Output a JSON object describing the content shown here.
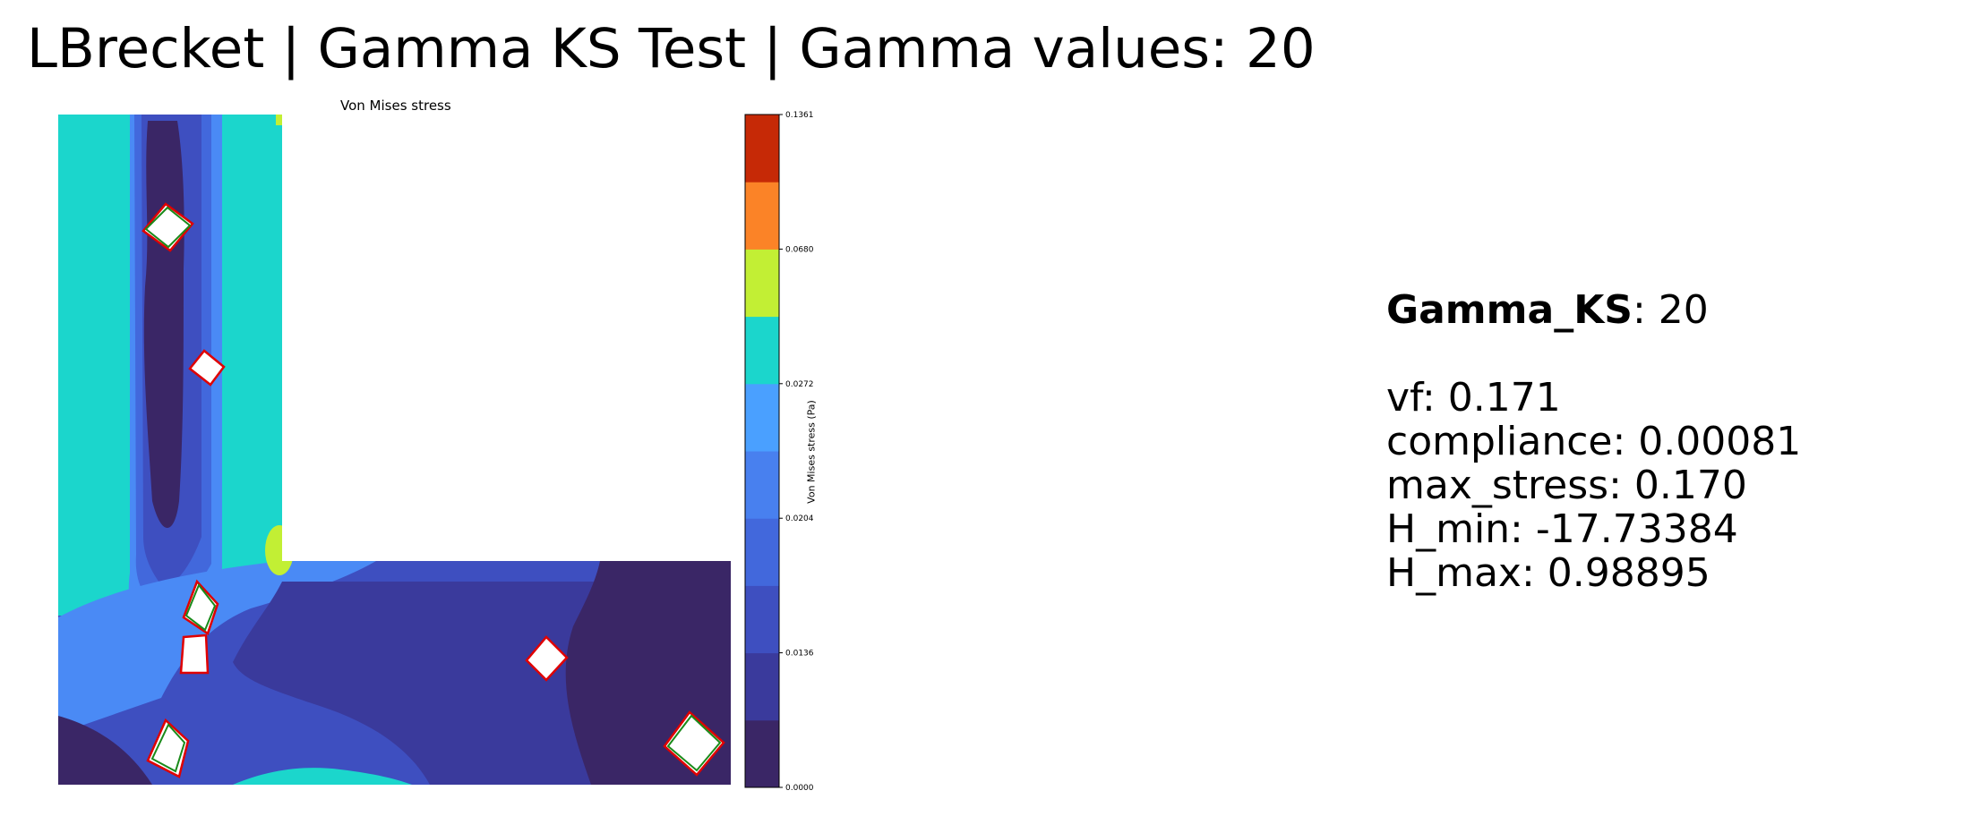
{
  "title": "LBrecket | Gamma KS Test | Gamma values: 20",
  "chart_data": {
    "type": "heatmap",
    "title": "Von Mises stress",
    "colorbar": {
      "label": "Von Mises stress (Pa)",
      "ticks": [
        "0.0000",
        "0.0136",
        "0.0204",
        "0.0272",
        "0.0680",
        "0.1361"
      ],
      "levels": [
        0.0,
        0.0136,
        0.017,
        0.0204,
        0.0238,
        0.0272,
        0.0476,
        0.068,
        0.102,
        0.1361,
        0.17
      ],
      "colors": [
        "#3a2666",
        "#3a3a9c",
        "#3e4fc0",
        "#4268dc",
        "#4880ef",
        "#4aa0ff",
        "#1bd6cc",
        "#c2ef34",
        "#fb8327",
        "#c62906"
      ]
    },
    "domain_shape": "L-bracket",
    "holes": 8
  },
  "info": {
    "gamma_key": "Gamma_KS",
    "gamma_value": ": 20",
    "lines": [
      "vf: 0.171",
      "compliance: 0.00081",
      "max_stress: 0.170",
      "H_min: -17.73384",
      "H_max: 0.98895"
    ]
  }
}
